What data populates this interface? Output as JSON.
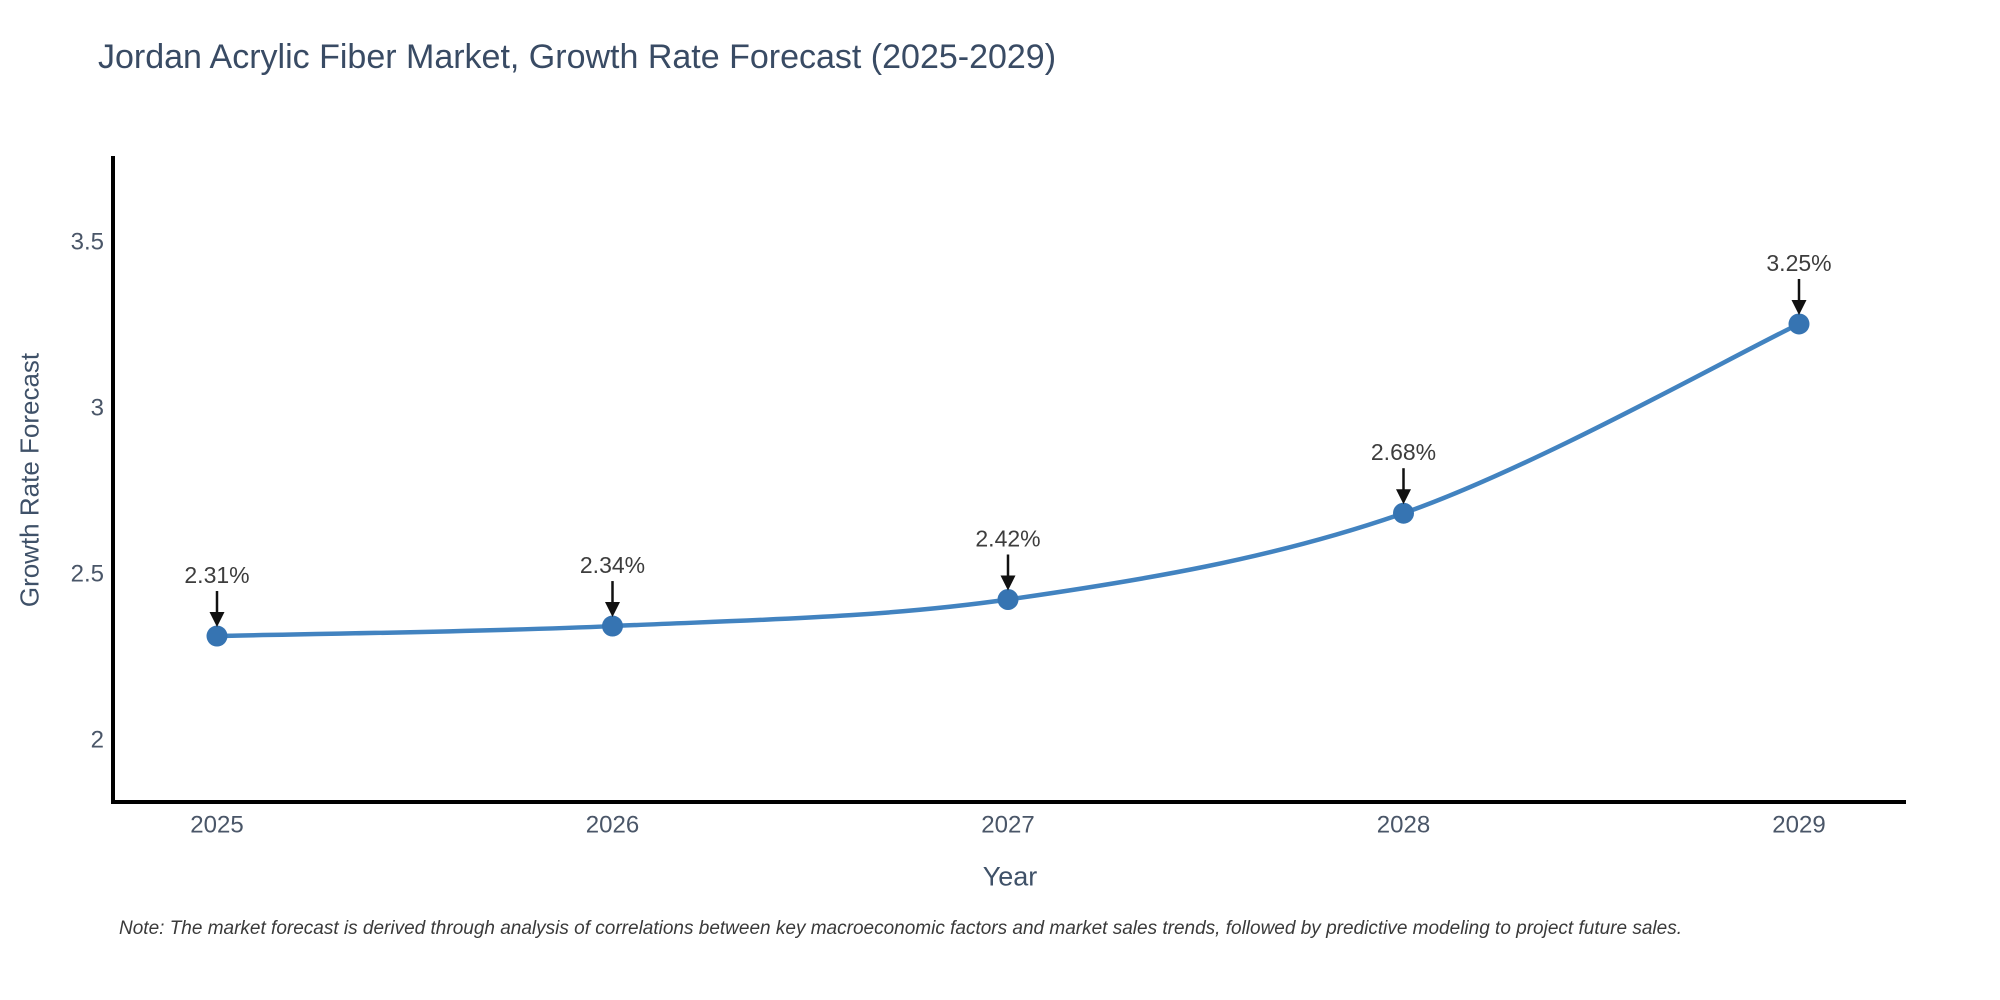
{
  "figure": {
    "note": "Note: The market forecast is derived through analysis of correlations between key macroeconomic factors and market sales trends, followed by predictive modeling to project future sales."
  },
  "chart_data": {
    "type": "line",
    "title": "Jordan Acrylic Fiber Market, Growth Rate Forecast (2025-2029)",
    "xlabel": "Year",
    "ylabel": "Growth Rate Forecast",
    "categories": [
      "2025",
      "2026",
      "2027",
      "2028",
      "2029"
    ],
    "series": [
      {
        "name": "Growth Rate Forecast",
        "values": [
          2.31,
          2.34,
          2.42,
          2.68,
          3.25
        ],
        "labels": [
          "2.31%",
          "2.34%",
          "2.42%",
          "2.68%",
          "3.25%"
        ]
      }
    ],
    "y_ticks": [
      "2",
      "2.5",
      "3",
      "3.5"
    ],
    "ylim": [
      1.81,
      3.75
    ],
    "line_shape": "spline",
    "grid": false,
    "legend": false,
    "point_annotations_have_arrows": true,
    "colors": {
      "line": "#4283c0",
      "marker": "#3674b2",
      "axis": "#000000",
      "arrow": "#111111",
      "tick_text": "#4a5668",
      "title_text": "#394b64",
      "annotation_text": "#3d3d3d",
      "background": "#ffffff"
    }
  }
}
